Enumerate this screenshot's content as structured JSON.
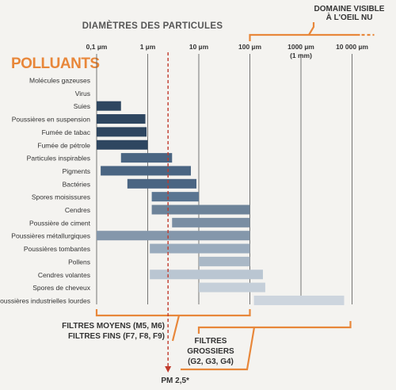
{
  "chart_data": {
    "type": "bar",
    "title": "DIAMÈTRES DES PARTICULES",
    "row_header": "POLLUANTS",
    "x_scale": "log",
    "xlim": [
      0.1,
      10000
    ],
    "ticks": [
      {
        "value": 0.1,
        "label": "0,1 µm",
        "sub": ""
      },
      {
        "value": 1,
        "label": "1 µm",
        "sub": ""
      },
      {
        "value": 10,
        "label": "10 µm",
        "sub": ""
      },
      {
        "value": 100,
        "label": "100 µm",
        "sub": ""
      },
      {
        "value": 1000,
        "label": "1000 µm",
        "sub": "(1 mm)"
      },
      {
        "value": 10000,
        "label": "10 000 µm",
        "sub": ""
      }
    ],
    "categories": [
      "Molécules gazeuses",
      "Virus",
      "Suies",
      "Poussières en suspension",
      "Fumée de tabac",
      "Fumée de pétrole",
      "Particules inspirables",
      "Pigments",
      "Bactéries",
      "Spores moisissures",
      "Cendres",
      "Poussière de ciment",
      "Poussières métallurgiques",
      "Poussières tombantes",
      "Pollens",
      "Cendres volantes",
      "Spores de cheveux",
      "Poussières industrielles lourdes"
    ],
    "ranges": [
      null,
      null,
      [
        0.1,
        0.3
      ],
      [
        0.1,
        0.9
      ],
      [
        0.1,
        0.95
      ],
      [
        0.1,
        1
      ],
      [
        0.3,
        3
      ],
      [
        0.12,
        7
      ],
      [
        0.4,
        9
      ],
      [
        1.2,
        10
      ],
      [
        1.2,
        100
      ],
      [
        3,
        100
      ],
      [
        0.1,
        100
      ],
      [
        1.1,
        100
      ],
      [
        10,
        100
      ],
      [
        1.1,
        180
      ],
      [
        10,
        200
      ],
      [
        120,
        7000
      ]
    ],
    "bar_colors": [
      "",
      "",
      "#2e4660",
      "#2e4660",
      "#2e4660",
      "#2e4660",
      "#4a6582",
      "#4a6582",
      "#4a6582",
      "#5a7591",
      "#6d8399",
      "#7a8ea3",
      "#8497ab",
      "#9aabbd",
      "#aab8c6",
      "#bac6d2",
      "#c5cfd9",
      "#cdd5de"
    ],
    "domain_visible": {
      "lines": [
        "DOMAINE VISIBLE",
        "À L'OEIL NU"
      ],
      "from": 100,
      "to": 10000
    },
    "filters": [
      {
        "lines": [
          "FILTRES MOYENS (M5, M6)",
          "FILTRES FINS (F7, F8, F9)"
        ],
        "from": 0.1,
        "to": 100
      },
      {
        "lines": [
          "FILTRES",
          "GROSSIERS",
          "(G2, G3, G4)"
        ],
        "from": 10,
        "to": 10000
      }
    ],
    "marker": {
      "label": "PM 2,5*",
      "value": 2.5
    },
    "colors": {
      "accent": "#e8873a",
      "marker": "#c0392b",
      "grid": "#555555",
      "text": "#333333",
      "title": "#555555"
    }
  }
}
